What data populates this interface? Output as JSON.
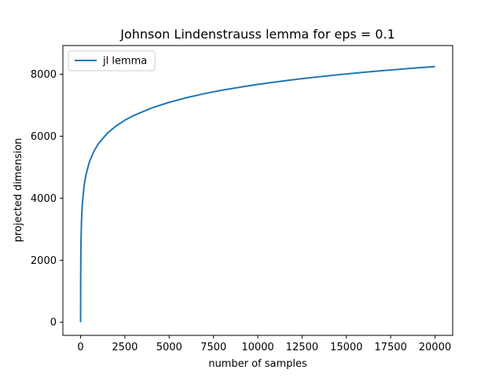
{
  "chart_data": {
    "type": "line",
    "title": "Johnson Lindenstrauss lemma for eps = 0.1",
    "xlabel": "number of samples",
    "ylabel": "projected dimension",
    "xlim": [
      -1000,
      21000
    ],
    "ylim": [
      -425,
      8925
    ],
    "xticks": [
      0,
      2500,
      5000,
      7500,
      10000,
      12500,
      15000,
      17500,
      20000
    ],
    "yticks": [
      0,
      2000,
      4000,
      6000,
      8000
    ],
    "grid": false,
    "legend_position": "top-left",
    "series": [
      {
        "name": "jl lemma",
        "color": "#1f77b4",
        "formula_note": "y = 4 ln(n) / (eps^2/2 - eps^3/3), eps = 0.1",
        "x": [
          1,
          2,
          5,
          10,
          20,
          50,
          100,
          200,
          300,
          500,
          750,
          1000,
          1500,
          2000,
          2500,
          3000,
          4000,
          5000,
          6000,
          7000,
          7500,
          8000,
          9000,
          10000,
          11000,
          12000,
          12500,
          13000,
          14000,
          15000,
          16000,
          17000,
          17500,
          18000,
          19000,
          20000
        ],
        "y": [
          0,
          578,
          1341,
          1919,
          2496,
          3260,
          3837,
          4415,
          4752,
          5178,
          5515,
          5754,
          6092,
          6331,
          6517,
          6669,
          6908,
          7094,
          7246,
          7375,
          7432,
          7486,
          7583,
          7672,
          7751,
          7824,
          7858,
          7890,
          7951,
          8009,
          8063,
          8113,
          8137,
          8160,
          8205,
          8248
        ]
      }
    ]
  }
}
